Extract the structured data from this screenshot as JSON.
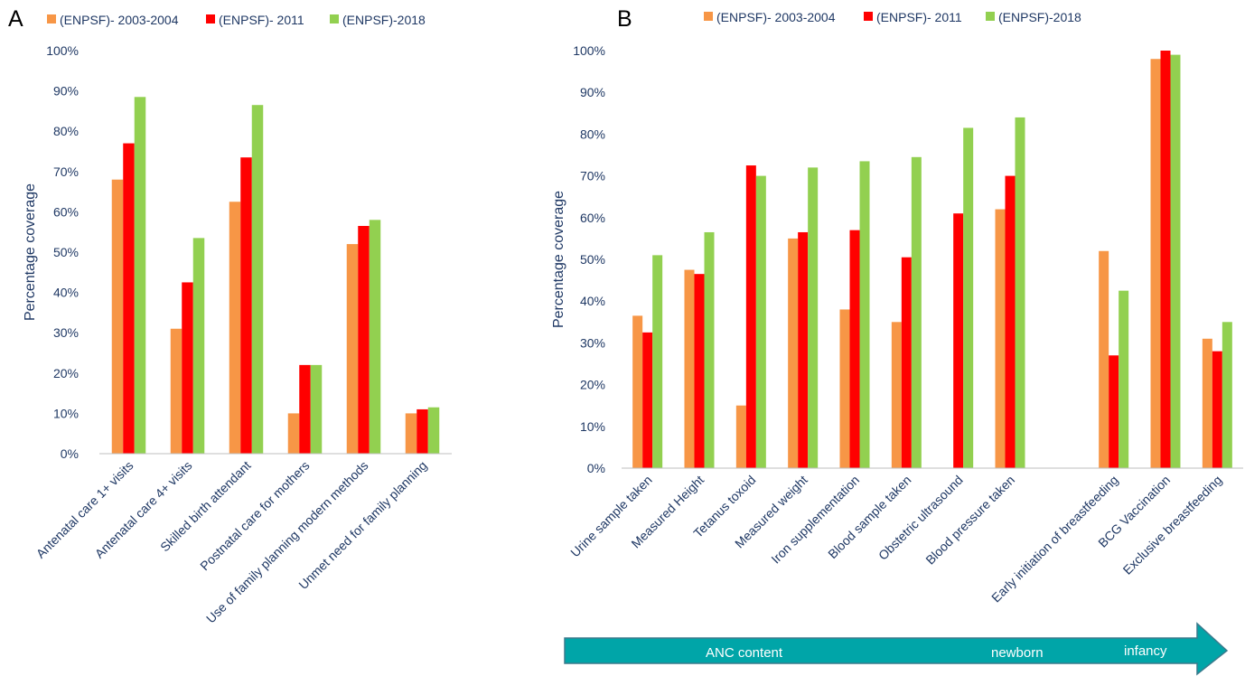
{
  "colors": {
    "series1": "#f79646",
    "series2": "#ff0000",
    "series3": "#92d050",
    "axis": "#bfbfbf",
    "text": "#1f3864",
    "arrow": "#00a5a8",
    "arrowStroke": "#3a7a8c"
  },
  "chart_data": [
    {
      "panel": "A",
      "type": "bar",
      "ylabel": "Percentage  coverage",
      "ylim": [
        0,
        100
      ],
      "yticks": [
        "0%",
        "10%",
        "20%",
        "30%",
        "40%",
        "50%",
        "60%",
        "70%",
        "80%",
        "90%",
        "100%"
      ],
      "legend": [
        "(ENPSF)- 2003-2004",
        "(ENPSF)- 2011",
        "(ENPSF)-2018"
      ],
      "legend_position": "top",
      "categories": [
        "Antenatal care 1+ visits",
        "Antenatal care  4+ visits",
        "Skilled birth attendant",
        "Postnatal care for mothers",
        "Use of family planning modern methods",
        "Unmet need for family planning"
      ],
      "series": [
        {
          "name": "(ENPSF)- 2003-2004",
          "values": [
            68,
            31,
            62.5,
            10,
            52,
            10
          ]
        },
        {
          "name": "(ENPSF)- 2011",
          "values": [
            77,
            42.5,
            73.5,
            22,
            56.5,
            11
          ]
        },
        {
          "name": "(ENPSF)-2018",
          "values": [
            88.5,
            53.5,
            86.5,
            22,
            58,
            11.5
          ]
        }
      ]
    },
    {
      "panel": "B",
      "type": "bar",
      "ylabel": "Percentage coverage",
      "ylim": [
        0,
        100
      ],
      "yticks": [
        "0%",
        "10%",
        "20%",
        "30%",
        "40%",
        "50%",
        "60%",
        "70%",
        "80%",
        "90%",
        "100%"
      ],
      "legend": [
        "(ENPSF)- 2003-2004",
        "(ENPSF)- 2011",
        "(ENPSF)-2018"
      ],
      "legend_position": "top",
      "categories": [
        "Urine sample taken",
        "Measured Height",
        "Tetanus toxoid",
        "Measured weight",
        "Iron supplementation",
        "Blood sample taken",
        "Obstetric ultrasound",
        "Blood pressure taken",
        "",
        "Early initiation of breastfeeding",
        "BCG Vaccination",
        "Exclusive breastfeeding"
      ],
      "series": [
        {
          "name": "(ENPSF)- 2003-2004",
          "values": [
            36.5,
            47.5,
            15,
            55,
            38,
            35,
            null,
            62,
            null,
            52,
            98,
            31
          ]
        },
        {
          "name": "(ENPSF)- 2011",
          "values": [
            32.5,
            46.5,
            72.5,
            56.5,
            57,
            50.5,
            61,
            70,
            null,
            27,
            100,
            28
          ]
        },
        {
          "name": "(ENPSF)-2018",
          "values": [
            51,
            56.5,
            70,
            72,
            73.5,
            74.5,
            81.5,
            84,
            null,
            42.5,
            99,
            35
          ]
        }
      ],
      "arrow_labels": [
        "ANC content",
        "newborn",
        "infancy"
      ]
    }
  ]
}
